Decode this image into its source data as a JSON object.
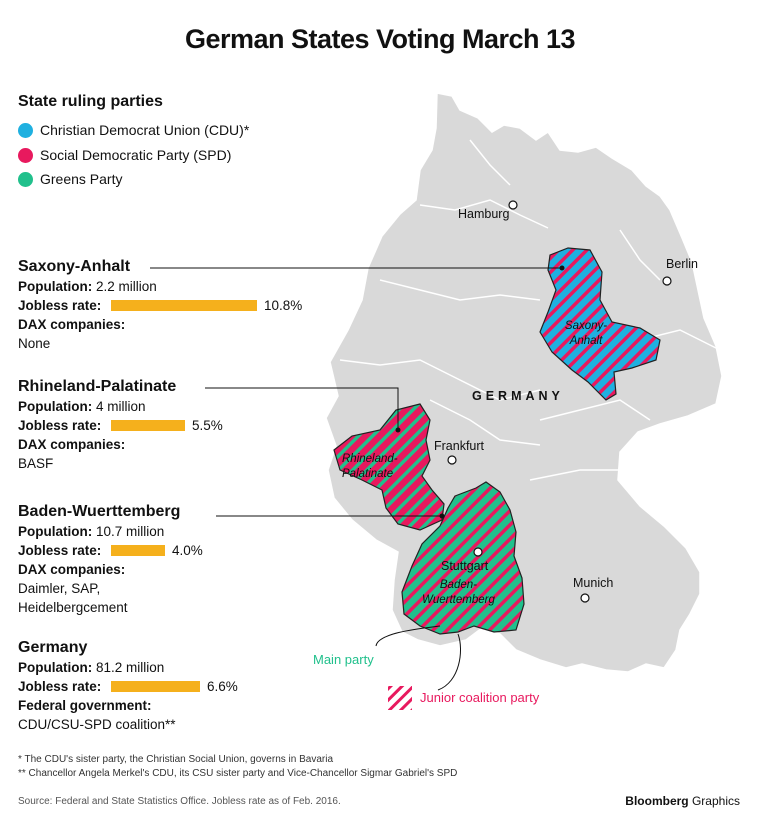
{
  "title": "German States Voting March 13",
  "legend": {
    "title": "State ruling parties",
    "items": [
      {
        "label": "Christian Democrat Union (CDU)*",
        "color": "#1fb0e0"
      },
      {
        "label": "Social Democratic Party (SPD)",
        "color": "#e8195e"
      },
      {
        "label": "Greens Party",
        "color": "#21c08c"
      }
    ]
  },
  "states": [
    {
      "name": "Saxony-Anhalt",
      "population_label": "Population:",
      "population": "2.2 million",
      "jobless_label": "Jobless rate:",
      "jobless": "10.8%",
      "jobless_value": 10.8,
      "dax_label": "DAX companies:",
      "dax": [
        "None"
      ]
    },
    {
      "name": "Rhineland-Palatinate",
      "population_label": "Population:",
      "population": "4 million",
      "jobless_label": "Jobless rate:",
      "jobless": "5.5%",
      "jobless_value": 5.5,
      "dax_label": "DAX companies:",
      "dax": [
        "BASF"
      ]
    },
    {
      "name": "Baden-Wuerttemberg",
      "population_label": "Population:",
      "population": "10.7 million",
      "jobless_label": "Jobless rate:",
      "jobless": "4.0%",
      "jobless_value": 4.0,
      "dax_label": "DAX companies:",
      "dax": [
        "Daimler, SAP,",
        "Heidelbergcement"
      ]
    },
    {
      "name": "Germany",
      "population_label": "Population:",
      "population": "81.2 million",
      "jobless_label": "Jobless rate:",
      "jobless": "6.6%",
      "jobless_value": 6.6,
      "dax_label": "Federal government:",
      "dax": [
        "CDU/CSU-SPD coalition**"
      ]
    }
  ],
  "map": {
    "country_label": "GERMANY",
    "cities": [
      "Hamburg",
      "Berlin",
      "Frankfurt",
      "Stuttgart",
      "Munich"
    ],
    "state_labels": {
      "saxony_anhalt": [
        "Saxony-",
        "Anhalt"
      ],
      "rhineland_palatinate": [
        "Rhineland-",
        "Palatinate"
      ],
      "baden_wuerttemberg": [
        "Baden-",
        "Wuerttemberg"
      ]
    },
    "main_party_label": "Main party",
    "junior_party_label": "Junior coalition party",
    "colors": {
      "land": "#d9d9d9",
      "border": "#ffffff",
      "cdu": "#1fb0e0",
      "spd": "#e8195e",
      "greens": "#21c08c",
      "jobless_bar": "#f5b01c"
    }
  },
  "footnotes": [
    "*  The CDU's sister party, the Christian Social Union, governs in Bavaria",
    "** Chancellor Angela Merkel's CDU, its CSU sister party and Vice-Chancellor Sigmar Gabriel's SPD"
  ],
  "source": "Source: Federal and State Statistics Office. Jobless rate as of Feb. 2016.",
  "brand": {
    "name": "Bloomberg",
    "suffix": "Graphics"
  }
}
